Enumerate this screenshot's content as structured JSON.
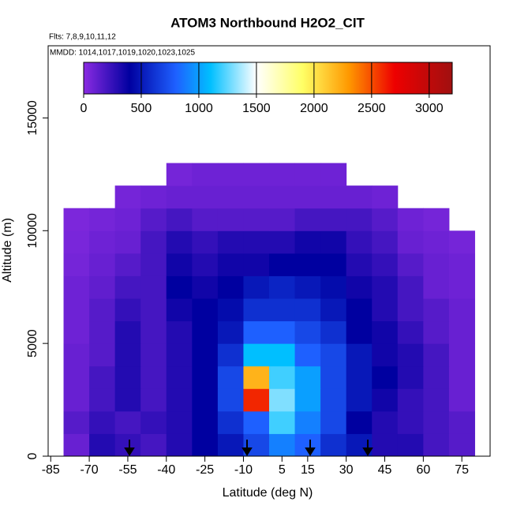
{
  "chart_data": {
    "type": "heatmap",
    "title": "ATOM3 Northbound H2O2_CIT",
    "subtitle": "Flts: 7,8,9,10,11,12",
    "annotation": "MMDD: 1014,1017,1019,1020,1023,1025",
    "x_label": "Latitude (deg N)",
    "y_label": "Altitude (m)",
    "xlim": [
      -86,
      86
    ],
    "xticks": [
      -85,
      -70,
      -55,
      -40,
      -25,
      -10,
      5,
      15,
      30,
      45,
      60,
      75
    ],
    "ylim": [
      0,
      18200
    ],
    "yticks": [
      0,
      5000,
      10000,
      15000
    ],
    "x_bins": [
      -80,
      -70,
      -60,
      -50,
      -40,
      -30,
      -20,
      -10,
      0,
      10,
      20,
      30,
      40,
      50,
      60,
      70,
      80
    ],
    "y_bins": [
      0,
      1000,
      2000,
      3000,
      4000,
      5000,
      6000,
      7000,
      8000,
      9000,
      10000,
      11000,
      12000,
      13000
    ],
    "z": [
      [
        100,
        300,
        250,
        200,
        300,
        400,
        500,
        700,
        900,
        800,
        600,
        500,
        300,
        300,
        200,
        150
      ],
      [
        150,
        250,
        200,
        250,
        300,
        400,
        600,
        800,
        1200,
        900,
        700,
        400,
        300,
        250,
        200,
        150
      ],
      [
        100,
        200,
        300,
        200,
        300,
        400,
        700,
        2600,
        1300,
        1000,
        700,
        500,
        350,
        250,
        200,
        100
      ],
      [
        100,
        200,
        300,
        200,
        300,
        400,
        700,
        2200,
        1200,
        1000,
        700,
        500,
        400,
        300,
        200,
        100
      ],
      [
        100,
        150,
        300,
        200,
        300,
        400,
        600,
        1100,
        1100,
        800,
        700,
        500,
        350,
        300,
        200,
        100
      ],
      [
        80,
        150,
        300,
        200,
        300,
        400,
        500,
        800,
        800,
        700,
        600,
        400,
        350,
        250,
        150,
        100
      ],
      [
        80,
        150,
        250,
        200,
        350,
        400,
        450,
        600,
        600,
        600,
        500,
        400,
        300,
        200,
        150,
        100
      ],
      [
        80,
        120,
        200,
        200,
        400,
        350,
        400,
        500,
        550,
        500,
        450,
        350,
        300,
        200,
        100,
        80
      ],
      [
        60,
        100,
        150,
        200,
        350,
        300,
        350,
        350,
        400,
        400,
        400,
        300,
        250,
        150,
        100,
        80
      ],
      [
        50,
        80,
        100,
        200,
        300,
        250,
        300,
        300,
        300,
        350,
        350,
        250,
        200,
        100,
        80,
        60
      ],
      [
        40,
        60,
        80,
        150,
        200,
        150,
        150,
        150,
        150,
        200,
        200,
        200,
        150,
        80,
        60,
        null
      ],
      [
        null,
        null,
        60,
        80,
        100,
        100,
        100,
        100,
        100,
        100,
        100,
        100,
        80,
        null,
        null,
        null
      ],
      [
        null,
        null,
        null,
        null,
        60,
        80,
        80,
        80,
        80,
        80,
        80,
        null,
        null,
        null,
        null,
        null
      ]
    ],
    "colorbar_lim": [
      0,
      3200
    ],
    "colorbar_ticks": [
      0,
      500,
      1000,
      1500,
      2000,
      2500,
      3000
    ],
    "colorscale": [
      [
        0,
        "#8a2be2"
      ],
      [
        400,
        "#0000a0"
      ],
      [
        800,
        "#1e60ff"
      ],
      [
        1100,
        "#00bfff"
      ],
      [
        1500,
        "#ffffff"
      ],
      [
        1900,
        "#ffff66"
      ],
      [
        2300,
        "#ff9900"
      ],
      [
        2700,
        "#ee0000"
      ],
      [
        3200,
        "#a01010"
      ]
    ]
  }
}
